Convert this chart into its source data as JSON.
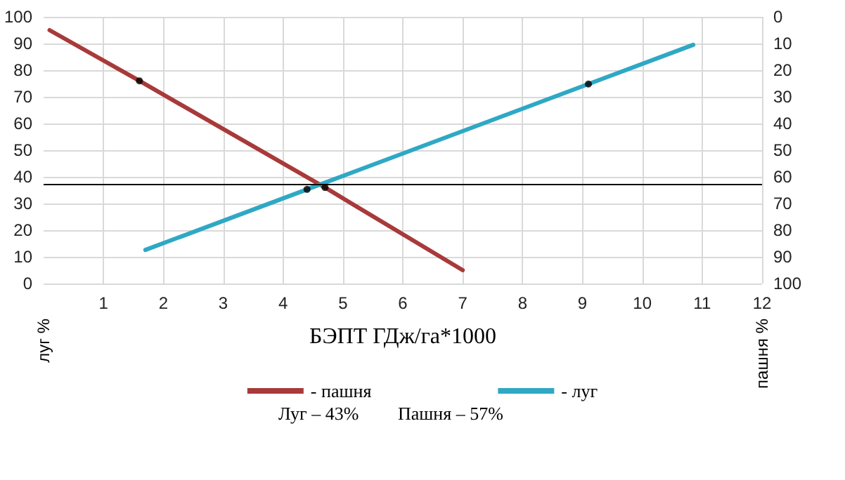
{
  "chart_data": {
    "type": "line",
    "xlabel": "БЭПТ ГДж/га*1000",
    "ylabel": "луг %",
    "y2label": "пашня %",
    "xlim": [
      0,
      12
    ],
    "xticks": [
      1,
      2,
      3,
      4,
      5,
      6,
      7,
      8,
      9,
      10,
      11,
      12
    ],
    "ylim": [
      0,
      100
    ],
    "yticks": [
      0,
      10,
      20,
      30,
      40,
      50,
      60,
      70,
      80,
      90,
      100
    ],
    "y2lim": [
      100,
      0
    ],
    "y2ticks": [
      0,
      10,
      20,
      30,
      40,
      50,
      60,
      70,
      80,
      90,
      100
    ],
    "grid": true,
    "legend": "bottom",
    "marker": "none",
    "line_style": "solid",
    "series": [
      {
        "name": "- пашня",
        "color": "#a83a3a",
        "x": [
          0.1,
          1.6,
          4.7,
          7.0
        ],
        "values": [
          95,
          76,
          36,
          5
        ]
      },
      {
        "name": "- луг",
        "color": "#2fa8c4",
        "x": [
          1.7,
          4.4,
          9.1,
          10.85
        ],
        "values": [
          12.6,
          35.3,
          74.8,
          89.5
        ]
      },
      {
        "type": "scatter",
        "color": "#000000",
        "marker": "circle",
        "x": [
          1.6,
          4.7,
          4.4,
          9.1
        ],
        "values": [
          76,
          36,
          35.3,
          74.8
        ]
      }
    ],
    "ref_lines": [
      {
        "axis": "y",
        "value": 37,
        "color": "#000000"
      }
    ],
    "annotations": [
      "Луг – 43%",
      "Пашня – 57%"
    ]
  }
}
